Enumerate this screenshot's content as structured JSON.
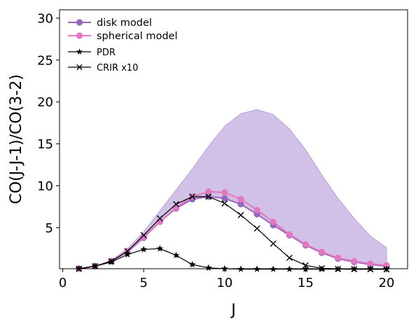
{
  "chart_data": {
    "type": "line",
    "xlabel": "J",
    "ylabel": "CO(J-J-1)/CO(3-2)",
    "xlim": [
      -0.2,
      21.3
    ],
    "ylim": [
      0.1,
      31
    ],
    "xticks": [
      0,
      5,
      10,
      15,
      20
    ],
    "yticks": [
      5,
      10,
      15,
      20,
      25,
      30
    ],
    "grid": false,
    "legend_position": "top-left",
    "shaded_band": {
      "color": "#b9a0d8",
      "x": [
        1,
        2,
        3,
        4,
        5,
        6,
        7,
        8,
        9,
        10,
        11,
        12,
        13,
        14,
        15,
        16,
        17,
        18,
        19,
        20
      ],
      "lower": [
        0.1,
        0.4,
        1.0,
        2.1,
        3.8,
        5.7,
        7.3,
        8.4,
        8.7,
        8.5,
        7.8,
        6.6,
        5.3,
        4.1,
        2.9,
        2.0,
        1.3,
        0.9,
        0.6,
        0.4
      ],
      "upper": [
        0.1,
        0.4,
        1.1,
        2.5,
        4.5,
        7.0,
        9.5,
        12.0,
        14.7,
        17.1,
        18.6,
        19.1,
        18.5,
        16.8,
        14.3,
        11.3,
        8.5,
        6.1,
        4.0,
        2.6
      ]
    },
    "series": [
      {
        "name": "disk model",
        "color": "#9467bd",
        "marker": "circle",
        "x": [
          1,
          2,
          3,
          4,
          5,
          6,
          7,
          8,
          9,
          10,
          11,
          12,
          13,
          14,
          15,
          16,
          17,
          18,
          19,
          20
        ],
        "values": [
          0.1,
          0.4,
          1.0,
          2.1,
          3.8,
          5.7,
          7.3,
          8.4,
          8.7,
          8.5,
          7.8,
          6.6,
          5.3,
          4.1,
          2.9,
          2.0,
          1.3,
          0.9,
          0.6,
          0.4
        ]
      },
      {
        "name": "spherical model",
        "color": "#e377c2",
        "marker": "circle",
        "x": [
          1,
          2,
          3,
          4,
          5,
          6,
          7,
          8,
          9,
          10,
          11,
          12,
          13,
          14,
          15,
          16,
          17,
          18,
          19,
          20
        ],
        "values": [
          0.1,
          0.4,
          1.0,
          2.2,
          3.9,
          5.7,
          7.4,
          8.7,
          9.3,
          9.2,
          8.4,
          7.1,
          5.7,
          4.2,
          3.0,
          2.1,
          1.4,
          1.0,
          0.7,
          0.5
        ]
      },
      {
        "name": "PDR",
        "color": "#000000",
        "marker": "star",
        "x": [
          1,
          2,
          3,
          4,
          5,
          6,
          7,
          8,
          9,
          10,
          11,
          12,
          13,
          14,
          15,
          16,
          17,
          18,
          19,
          20
        ],
        "values": [
          0.1,
          0.4,
          0.9,
          1.8,
          2.4,
          2.5,
          1.7,
          0.6,
          0.2,
          0.1,
          0.05,
          0.05,
          0.05,
          0.05,
          0.05,
          0.05,
          0.05,
          0.05,
          0.05,
          0.05
        ]
      },
      {
        "name": "CRIR x10",
        "color": "#000000",
        "marker": "x",
        "x": [
          1,
          2,
          3,
          4,
          5,
          6,
          7,
          8,
          9,
          10,
          11,
          12,
          13,
          14,
          15,
          16,
          17,
          18,
          19,
          20
        ],
        "values": [
          0.1,
          0.4,
          1.0,
          2.2,
          4.1,
          6.1,
          7.8,
          8.7,
          8.7,
          7.9,
          6.5,
          4.9,
          3.1,
          1.4,
          0.5,
          0.15,
          0.08,
          0.05,
          0.04,
          0.03
        ]
      }
    ]
  }
}
